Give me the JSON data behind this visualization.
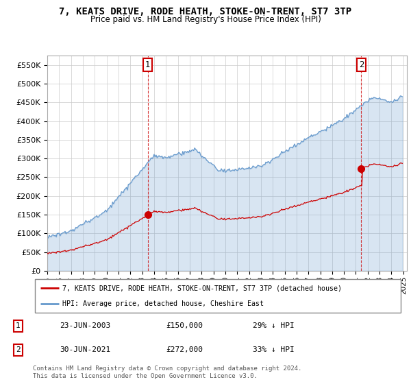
{
  "title": "7, KEATS DRIVE, RODE HEATH, STOKE-ON-TRENT, ST7 3TP",
  "subtitle": "Price paid vs. HM Land Registry's House Price Index (HPI)",
  "ylabel_ticks": [
    "£0",
    "£50K",
    "£100K",
    "£150K",
    "£200K",
    "£250K",
    "£300K",
    "£350K",
    "£400K",
    "£450K",
    "£500K",
    "£550K"
  ],
  "ylim": [
    0,
    575000
  ],
  "yticks": [
    0,
    50000,
    100000,
    150000,
    200000,
    250000,
    300000,
    350000,
    400000,
    450000,
    500000,
    550000
  ],
  "sale1_year": 2003.458,
  "sale1_price": 150000,
  "sale2_year": 2021.458,
  "sale2_price": 272000,
  "legend_line1": "7, KEATS DRIVE, RODE HEATH, STOKE-ON-TRENT, ST7 3TP (detached house)",
  "legend_line2": "HPI: Average price, detached house, Cheshire East",
  "table_row1": [
    "1",
    "23-JUN-2003",
    "£150,000",
    "29% ↓ HPI"
  ],
  "table_row2": [
    "2",
    "30-JUN-2021",
    "£272,000",
    "33% ↓ HPI"
  ],
  "footer": "Contains HM Land Registry data © Crown copyright and database right 2024.\nThis data is licensed under the Open Government Licence v3.0.",
  "red_color": "#cc0000",
  "blue_color": "#6699cc",
  "blue_fill_color": "#ddeeff",
  "background_color": "#ffffff",
  "grid_color": "#cccccc"
}
